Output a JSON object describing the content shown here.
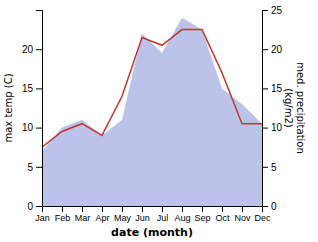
{
  "chart_data": {
    "type": "line",
    "categories": [
      "Jan",
      "Feb",
      "Mar",
      "Apr",
      "May",
      "Jun",
      "Jul",
      "Aug",
      "Sep",
      "Oct",
      "Nov",
      "Dec"
    ],
    "xlabel": "date (month)",
    "ylabel": "max temp (C)",
    "y2label": "med. precipitation\n(kg/m2)",
    "series": [
      {
        "type": "area",
        "axis": "y2",
        "color": "#b0b8e8",
        "values": [
          7.0,
          10.0,
          11.0,
          9.0,
          11.0,
          22.0,
          19.5,
          24.0,
          22.5,
          15.0,
          13.0,
          10.5
        ]
      },
      {
        "type": "line",
        "color": "#c0392b",
        "values": [
          7.5,
          9.5,
          10.5,
          9.0,
          14.0,
          21.5,
          20.5,
          22.5,
          22.5,
          17.0,
          10.5,
          10.5
        ]
      }
    ],
    "ylim": [
      0,
      25
    ],
    "yticks": [
      0,
      5,
      10,
      15,
      20
    ],
    "y2lim": [
      0,
      25
    ],
    "y2ticks": [
      0,
      5,
      10,
      15,
      20,
      25
    ],
    "grid": false
  }
}
